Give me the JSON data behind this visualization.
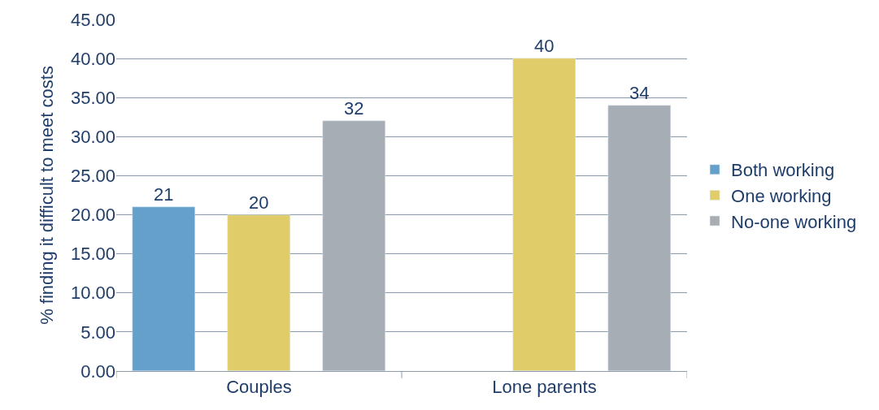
{
  "chart_data": {
    "type": "bar",
    "ylabel": "% finding it difficult to meet costs",
    "categories": [
      "Couples",
      "Lone parents"
    ],
    "series": [
      {
        "name": "Both working",
        "color": "#65a0cb",
        "values": [
          21,
          null
        ]
      },
      {
        "name": "One working",
        "color": "#e0cd6a",
        "values": [
          20,
          40
        ]
      },
      {
        "name": "No-one working",
        "color": "#a6adb5",
        "values": [
          32,
          34
        ]
      }
    ],
    "ylim": [
      0,
      45
    ],
    "yticks": [
      {
        "value": 0,
        "label": "0.00"
      },
      {
        "value": 5,
        "label": "5.00"
      },
      {
        "value": 10,
        "label": "10.00"
      },
      {
        "value": 15,
        "label": "15.00"
      },
      {
        "value": 20,
        "label": "20.00"
      },
      {
        "value": 25,
        "label": "25.00"
      },
      {
        "value": 30,
        "label": "30.00"
      },
      {
        "value": 35,
        "label": "35.00"
      },
      {
        "value": 40,
        "label": "40.00"
      },
      {
        "value": 45,
        "label": "45.00"
      }
    ],
    "grid": "y",
    "legend": "right",
    "data_labels": true
  }
}
